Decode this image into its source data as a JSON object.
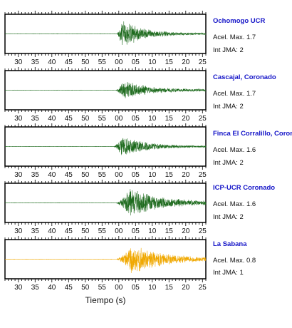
{
  "chart_data": {
    "type": "line",
    "xlabel": "Tiempo (s)",
    "x_ticks": [
      "30",
      "35",
      "40",
      "45",
      "50",
      "55",
      "00",
      "05",
      "10",
      "15",
      "20",
      "25"
    ],
    "x_minor_tick_step": 1,
    "panels": [
      {
        "station": "Ochomogo UCR",
        "accel_label": "Acel. Max. 1.7",
        "jma_label": "Int JMA: 2",
        "color": "#1e6b1e",
        "trace": {
          "onset": 3.3,
          "peak_time": 5.2,
          "peak_amplitude": 0.85,
          "decay": 6.0,
          "coda_amplitude": 0.05
        }
      },
      {
        "station": "Cascajal, Coronado",
        "accel_label": "Acel. Max. 1.7",
        "jma_label": "Int JMA: 2",
        "color": "#1e6b1e",
        "trace": {
          "onset": 3.0,
          "peak_time": 5.5,
          "peak_amplitude": 0.6,
          "decay": 7.0,
          "coda_amplitude": 0.05
        }
      },
      {
        "station": "Finca El Corralillo, Coronado",
        "accel_label": "Acel. Max. 1.6",
        "jma_label": "Int JMA: 2",
        "color": "#1e6b1e",
        "trace": {
          "onset": 2.5,
          "peak_time": 5.0,
          "peak_amplitude": 0.7,
          "decay": 6.0,
          "coda_amplitude": 0.05
        }
      },
      {
        "station": "ICP-UCR Coronado",
        "accel_label": "Acel. Max. 1.6",
        "jma_label": "Int JMA: 2",
        "color": "#1e6b1e",
        "trace": {
          "onset": 3.0,
          "peak_time": 7.5,
          "peak_amplitude": 0.85,
          "decay": 9.0,
          "coda_amplitude": 0.06
        }
      },
      {
        "station": "La Sabana",
        "accel_label": "Acel. Max. 0.8",
        "jma_label": "Int JMA: 1",
        "color": "#f0a800",
        "trace": {
          "onset": 3.0,
          "peak_time": 8.0,
          "peak_amplitude": 0.9,
          "decay": 9.0,
          "coda_amplitude": 0.06
        }
      }
    ]
  }
}
